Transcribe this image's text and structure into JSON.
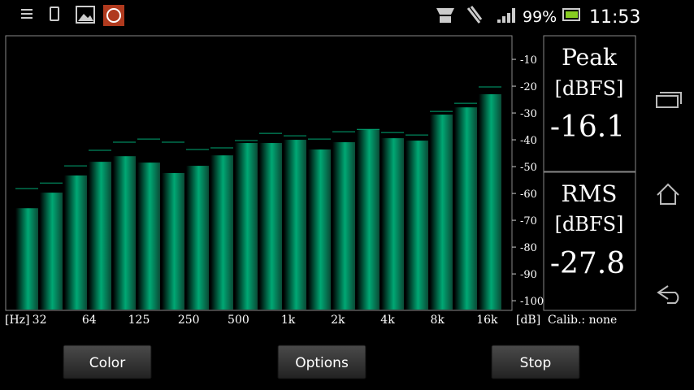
{
  "status_bar": {
    "battery": "99%",
    "time": "11:53"
  },
  "chart_data": {
    "type": "bar",
    "categories": [
      null,
      "32",
      null,
      "64",
      null,
      "125",
      null,
      "250",
      null,
      "500",
      null,
      "1k",
      null,
      "2k",
      null,
      "4k",
      null,
      "8k",
      null,
      "16k"
    ],
    "values": [
      -65.5,
      -59.7,
      -53.3,
      -48.2,
      -46.1,
      -48.5,
      -52.4,
      -49.7,
      -45.8,
      -41.2,
      -41.2,
      -40,
      -43.6,
      -40.9,
      -36.1,
      -39.4,
      -40.3,
      -30.6,
      -27.9,
      -23
    ],
    "peak_values": [
      -58.2,
      -56.1,
      -49.7,
      -43.9,
      -40.9,
      -39.7,
      -40.9,
      -43.6,
      -43,
      -40.3,
      -37.6,
      -38.5,
      -39.7,
      -37,
      -36.1,
      -37.3,
      -38.2,
      -29.4,
      -26.4,
      -20.3
    ],
    "color": "#00a874",
    "ylim": [
      -103.6,
      -1.2
    ],
    "yticks": [
      -10,
      -20,
      -30,
      -40,
      -50,
      -60,
      -70,
      -80,
      -90,
      -100
    ],
    "x_unit": "[Hz]",
    "y_unit": "[dB]",
    "calibration": "Calib.: none"
  },
  "peak_panel": {
    "title": "Peak",
    "unit": "[dBFS]",
    "value": "-16.1"
  },
  "rms_panel": {
    "title": "RMS",
    "unit": "[dBFS]",
    "value": "-27.8"
  },
  "buttons": [
    "Color",
    "Options",
    "Stop"
  ]
}
